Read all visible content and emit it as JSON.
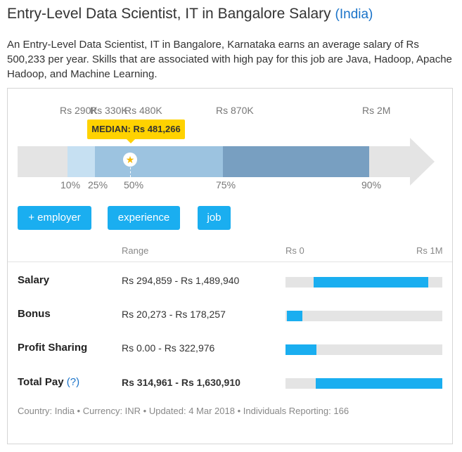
{
  "title": {
    "main": "Entry-Level Data Scientist, IT in Bangalore Salary",
    "country": "(India)"
  },
  "description": "An Entry-Level Data Scientist, IT in Bangalore, Karnataka earns an average salary of Rs 500,233 per year. Skills that are associated with high pay for this job are Java, Hadoop, Apache Hadoop, and Machine Learning.",
  "distribution": {
    "values": [
      "Rs 290K",
      "Rs 330K",
      "Rs 480K",
      "Rs 870K",
      "Rs 2M"
    ],
    "percentiles": [
      "10%",
      "25%",
      "50%",
      "75%",
      "90%"
    ],
    "median_label": "MEDIAN: Rs 481,266",
    "median_icon": "star-icon",
    "colors": {
      "track": "#e4e4e4",
      "p10_25": "#c6e0f2",
      "p25_75": "#9cc3e0",
      "p75_90": "#789fc1",
      "median_tag": "#ffd200"
    }
  },
  "buttons": {
    "employer": "+ employer",
    "experience": "experience",
    "job": "job"
  },
  "table": {
    "header_range": "Range",
    "header_min": "Rs 0",
    "header_max": "Rs 1M",
    "rows": [
      {
        "label": "Salary",
        "range": "Rs 294,859 - Rs 1,489,940"
      },
      {
        "label": "Bonus",
        "range": "Rs 20,273 - Rs 178,257"
      },
      {
        "label": "Profit Sharing",
        "range": "Rs 0.00 - Rs 322,976"
      },
      {
        "label": "Total Pay",
        "help": "(?)",
        "range": "Rs 314,961 - Rs 1,630,910"
      }
    ]
  },
  "footer": "Country: India • Currency: INR • Updated: 4 Mar 2018 • Individuals Reporting: 166",
  "accent_color": "#1aaef0"
}
